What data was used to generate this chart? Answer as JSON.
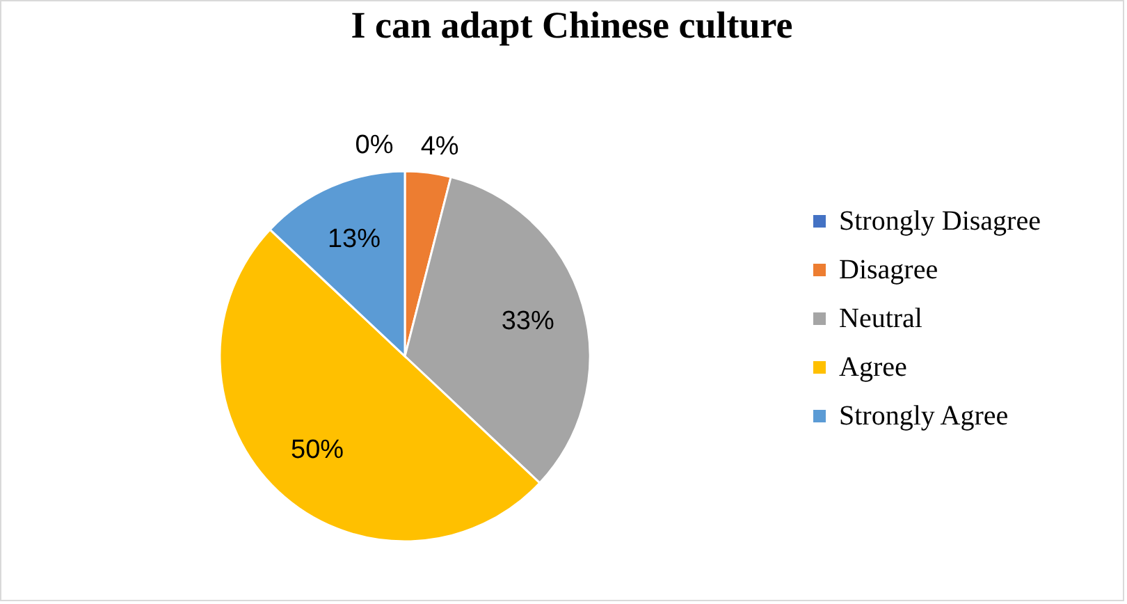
{
  "chart_data": {
    "type": "pie",
    "title": "I can adapt Chinese culture",
    "categories": [
      "Strongly Disagree",
      "Disagree",
      "Neutral",
      "Agree",
      "Strongly Agree"
    ],
    "values": [
      0,
      4,
      33,
      50,
      13
    ],
    "colors": [
      "#4472c4",
      "#ed7d31",
      "#a5a5a5",
      "#ffc000",
      "#5b9bd5"
    ],
    "value_labels": [
      "0%",
      "4%",
      "33%",
      "50%",
      "13%"
    ],
    "legend": "right"
  }
}
